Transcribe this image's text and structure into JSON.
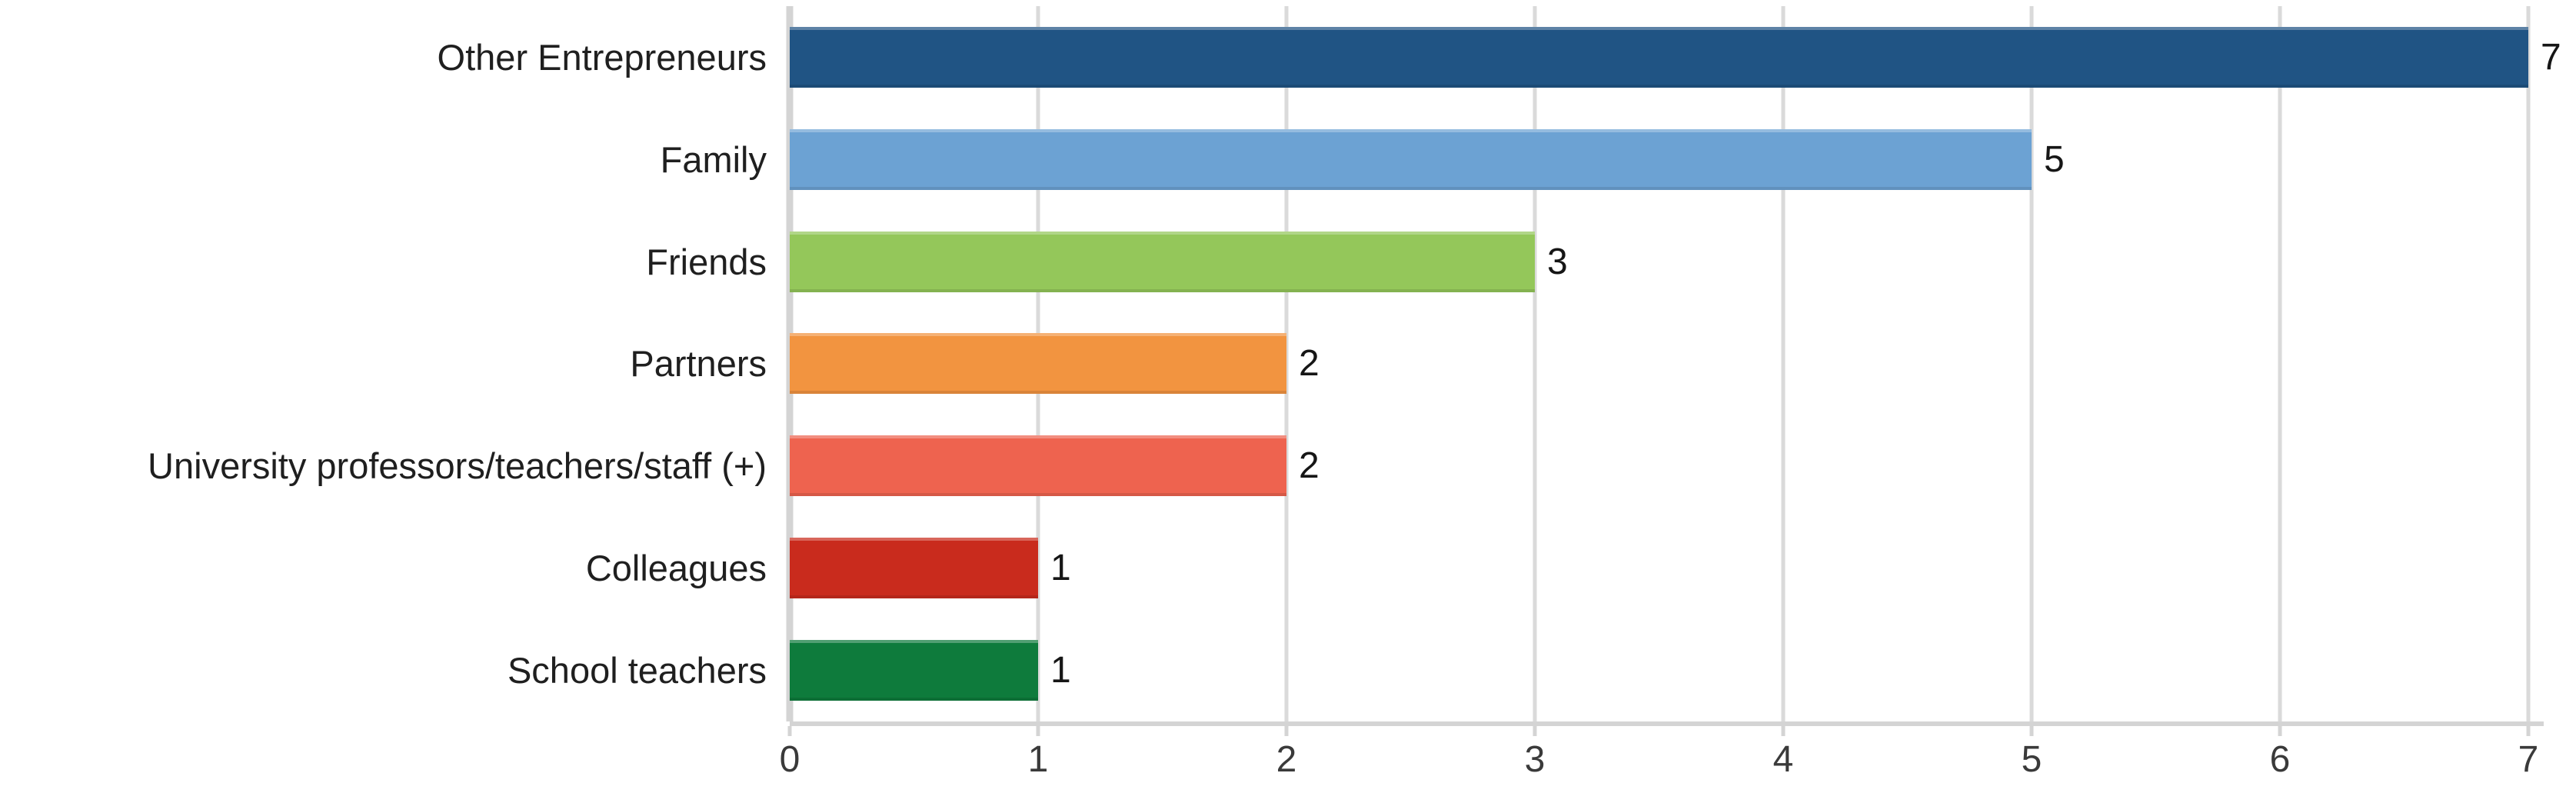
{
  "chart_data": {
    "type": "bar",
    "orientation": "horizontal",
    "categories": [
      "Other Entrepreneurs",
      "Family",
      "Friends",
      "Partners",
      "University professors/teachers/staff (+)",
      "Colleagues",
      "School teachers"
    ],
    "values": [
      7,
      5,
      3,
      2,
      2,
      1,
      1
    ],
    "data_labels": [
      "7",
      "5",
      "3",
      "2",
      "2",
      "1",
      "1"
    ],
    "bar_colors": [
      "#205484",
      "#6CA2D3",
      "#94C75A",
      "#F29440",
      "#EE634F",
      "#C92B1D",
      "#0E7B3C"
    ],
    "x_ticks": [
      "0",
      "1",
      "2",
      "3",
      "4",
      "5",
      "6",
      "7"
    ],
    "xlim": [
      0,
      7
    ],
    "grid": true,
    "legend": "none",
    "colors": {
      "gridline": "#DADADA",
      "axis_line": "#D4D4D4",
      "category_label_text": "#1F1F1F",
      "tick_label_text": "#3A3A3A",
      "value_label_text": "#161616",
      "background": "#FFFFFF"
    }
  }
}
